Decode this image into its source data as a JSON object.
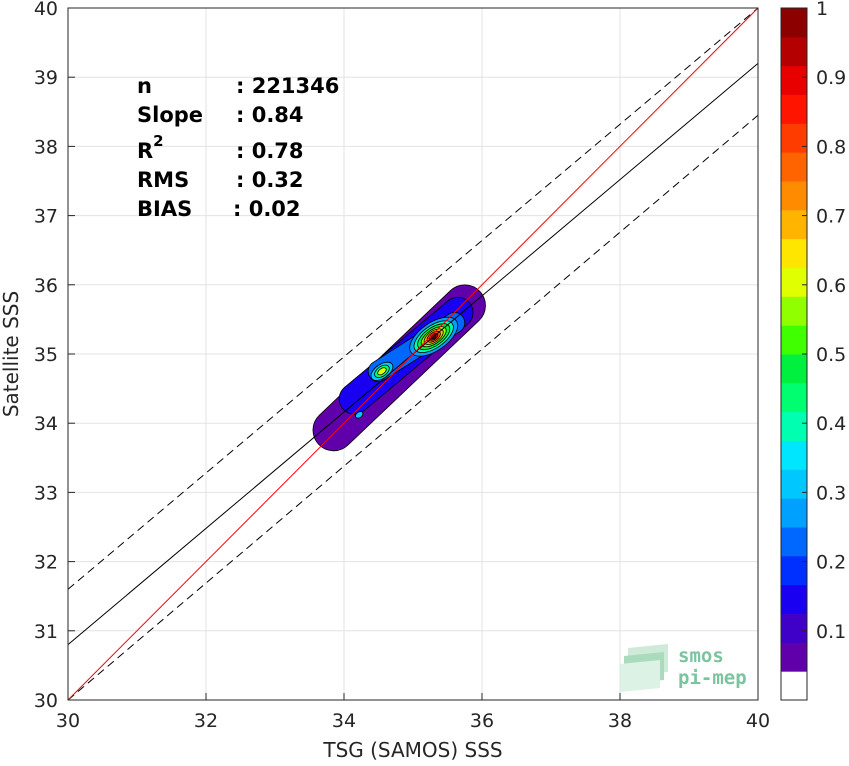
{
  "chart_data": {
    "type": "heatmap",
    "subtype": "density-contour-scatter",
    "xlabel": "TSG (SAMOS) SSS",
    "ylabel": "Satellite SSS",
    "xlim": [
      30,
      40
    ],
    "ylim": [
      30,
      40
    ],
    "xticks": [
      30,
      32,
      34,
      36,
      38,
      40
    ],
    "yticks": [
      30,
      31,
      32,
      33,
      34,
      35,
      36,
      37,
      38,
      39,
      40
    ],
    "grid": true,
    "stats": [
      {
        "label": "n",
        "value": ": 221346"
      },
      {
        "label": "Slope",
        "value": ": 0.84"
      },
      {
        "label": "R",
        "sup": "2",
        "value": ": 0.78"
      },
      {
        "label": "RMS",
        "value": ": 0.32"
      },
      {
        "label": "BIAS",
        "value": ": 0.02"
      }
    ],
    "lines": {
      "identity": {
        "x": [
          30,
          40
        ],
        "y": [
          30,
          40
        ],
        "color": "#ff0000"
      },
      "fit": {
        "x": [
          30,
          40
        ],
        "y": [
          30.8,
          39.2
        ],
        "color": "#000000"
      },
      "fit_upper": {
        "x": [
          30,
          40
        ],
        "y": [
          31.6,
          40.0
        ],
        "color": "#000000",
        "style": "dashed"
      },
      "fit_lower": {
        "x": [
          30,
          40
        ],
        "y": [
          30.0,
          38.45
        ],
        "color": "#000000",
        "style": "dashed"
      }
    },
    "density_peaks": [
      {
        "x": 35.3,
        "y": 35.25,
        "level": 1.0
      },
      {
        "x": 34.55,
        "y": 34.75,
        "level": 0.6
      },
      {
        "x": 34.2,
        "y": 34.1,
        "level": 0.3
      }
    ],
    "colorbar": {
      "min": 0,
      "max": 1,
      "ticks": [
        "0.1",
        "0.2",
        "0.3",
        "0.4",
        "0.5",
        "0.6",
        "0.7",
        "0.8",
        "0.9",
        "1"
      ],
      "tick_values": [
        0.1,
        0.2,
        0.3,
        0.4,
        0.5,
        0.6,
        0.7,
        0.8,
        0.9,
        1.0
      ],
      "colors": [
        "#ffffff",
        "#6000aa",
        "#3f00c8",
        "#1a00f0",
        "#0030ff",
        "#0068ff",
        "#00a0ff",
        "#00c8ff",
        "#00e6ff",
        "#00ffb0",
        "#00ff70",
        "#00f040",
        "#40ff00",
        "#90ff00",
        "#e0ff00",
        "#ffe600",
        "#ffb400",
        "#ff8c00",
        "#ff6400",
        "#ff3c00",
        "#ff1400",
        "#e80000",
        "#b40000",
        "#8c0000"
      ]
    }
  },
  "logo": {
    "line1": "smos",
    "line2": "pi-mep"
  }
}
